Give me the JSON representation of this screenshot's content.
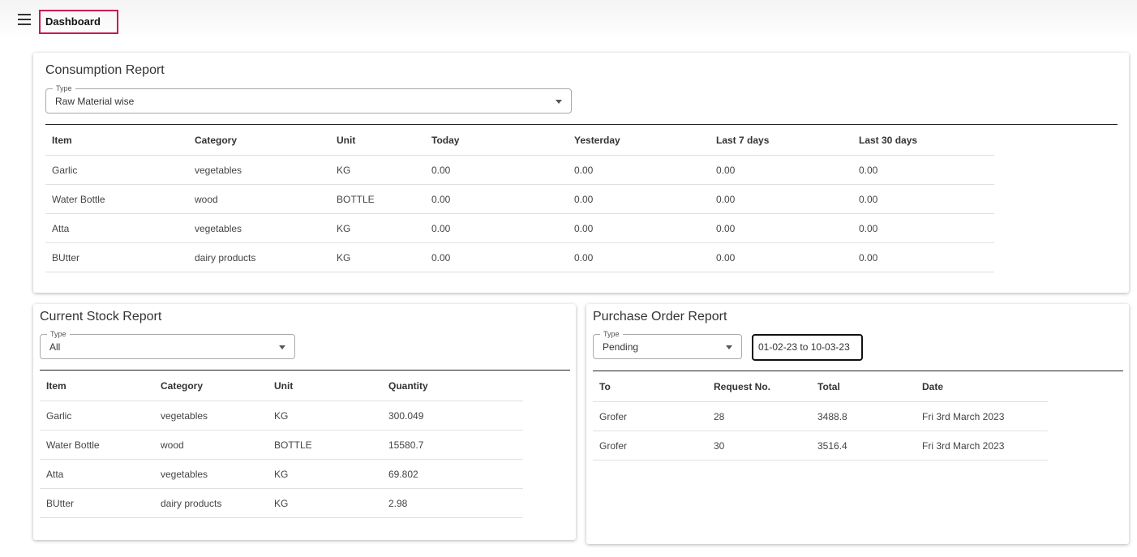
{
  "header": {
    "title": "Dashboard"
  },
  "consumption": {
    "title": "Consumption Report",
    "select": {
      "label": "Type",
      "value": "Raw Material wise"
    },
    "table": {
      "columns": [
        "Item",
        "Category",
        "Unit",
        "Today",
        "Yesterday",
        "Last 7 days",
        "Last 30 days"
      ],
      "rows": [
        [
          "Garlic",
          "vegetables",
          "KG",
          "0.00",
          "0.00",
          "0.00",
          "0.00"
        ],
        [
          "Water Bottle",
          "wood",
          "BOTTLE",
          "0.00",
          "0.00",
          "0.00",
          "0.00"
        ],
        [
          "Atta",
          "vegetables",
          "KG",
          "0.00",
          "0.00",
          "0.00",
          "0.00"
        ],
        [
          "BUtter",
          "dairy products",
          "KG",
          "0.00",
          "0.00",
          "0.00",
          "0.00"
        ]
      ]
    }
  },
  "stock": {
    "title": "Current Stock Report",
    "select": {
      "label": "Type",
      "value": "All"
    },
    "table": {
      "columns": [
        "Item",
        "Category",
        "Unit",
        "Quantity"
      ],
      "rows": [
        [
          "Garlic",
          "vegetables",
          "KG",
          "300.049"
        ],
        [
          "Water Bottle",
          "wood",
          "BOTTLE",
          "15580.7"
        ],
        [
          "Atta",
          "vegetables",
          "KG",
          "69.802"
        ],
        [
          "BUtter",
          "dairy products",
          "KG",
          "2.98"
        ]
      ]
    }
  },
  "purchase": {
    "title": "Purchase Order Report",
    "select": {
      "label": "Type",
      "value": "Pending"
    },
    "date_range": "01-02-23 to 10-03-23",
    "table": {
      "columns": [
        "To",
        "Request No.",
        "Total",
        "Date"
      ],
      "rows": [
        [
          "Grofer",
          "28",
          "3488.8",
          "Fri 3rd March 2023"
        ],
        [
          "Grofer",
          "30",
          "3516.4",
          "Fri 3rd March 2023"
        ]
      ]
    }
  }
}
